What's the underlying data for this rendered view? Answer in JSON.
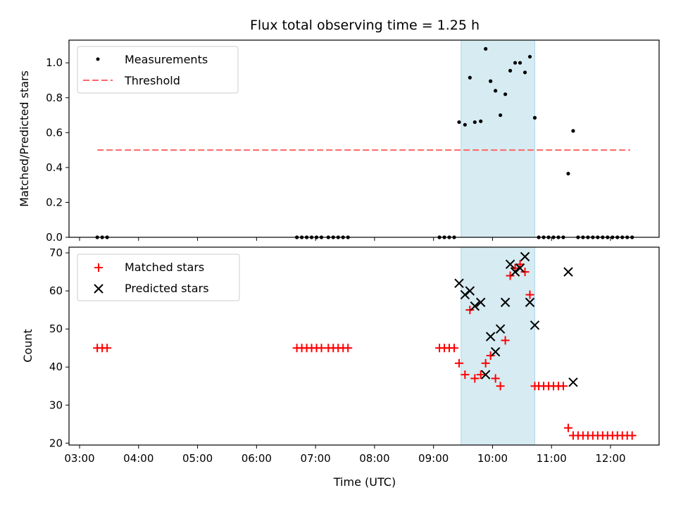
{
  "chart_data": {
    "type": "scatter",
    "title": "Flux total observing time = 1.25 h",
    "xlabel": "Time (UTC)",
    "x_ticks": [
      "03:00",
      "04:00",
      "05:00",
      "06:00",
      "07:00",
      "08:00",
      "09:00",
      "10:00",
      "11:00",
      "12:00"
    ],
    "shaded_interval": {
      "start": "09:28",
      "end": "10:43",
      "color": "#add8e6"
    },
    "panels": [
      {
        "ylabel": "Matched/Predicted stars",
        "ylim": [
          0,
          1.13
        ],
        "y_ticks": [
          "0.0",
          "0.2",
          "0.4",
          "0.6",
          "0.8",
          "1.0"
        ],
        "y_tick_values": [
          0,
          0.2,
          0.4,
          0.6,
          0.8,
          1.0
        ],
        "legend": {
          "placement": "upper left",
          "items": [
            "Measurements",
            "Threshold"
          ]
        },
        "threshold": {
          "name": "Threshold",
          "value": 0.5,
          "x_range": [
            "03:18",
            "12:20"
          ],
          "color": "#ff6666"
        },
        "series": [
          {
            "name": "Measurements",
            "marker": "dot",
            "color": "#000000",
            "points": [
              [
                "03:18",
                0
              ],
              [
                "03:23",
                0
              ],
              [
                "03:28",
                0
              ],
              [
                "06:41",
                0
              ],
              [
                "06:46",
                0
              ],
              [
                "06:51",
                0
              ],
              [
                "06:56",
                0
              ],
              [
                "07:01",
                0
              ],
              [
                "07:06",
                0
              ],
              [
                "07:13",
                0
              ],
              [
                "07:18",
                0
              ],
              [
                "07:23",
                0
              ],
              [
                "07:28",
                0
              ],
              [
                "07:33",
                0
              ],
              [
                "09:06",
                0
              ],
              [
                "09:11",
                0
              ],
              [
                "09:16",
                0
              ],
              [
                "09:21",
                0
              ],
              [
                "09:26",
                0.66
              ],
              [
                "09:32",
                0.645
              ],
              [
                "09:37",
                0.915
              ],
              [
                "09:42",
                0.66
              ],
              [
                "09:48",
                0.665
              ],
              [
                "09:53",
                1.08
              ],
              [
                "09:58",
                0.895
              ],
              [
                "10:03",
                0.84
              ],
              [
                "10:08",
                0.7
              ],
              [
                "10:13",
                0.82
              ],
              [
                "10:18",
                0.955
              ],
              [
                "10:23",
                1.0
              ],
              [
                "10:28",
                1.0
              ],
              [
                "10:33",
                0.945
              ],
              [
                "10:38",
                1.035
              ],
              [
                "10:43",
                0.685
              ],
              [
                "10:47",
                0
              ],
              [
                "10:52",
                0
              ],
              [
                "10:57",
                0
              ],
              [
                "11:02",
                0
              ],
              [
                "11:07",
                0
              ],
              [
                "11:12",
                0
              ],
              [
                "11:17",
                0.365
              ],
              [
                "11:22",
                0.61
              ],
              [
                "11:27",
                0
              ],
              [
                "11:32",
                0
              ],
              [
                "11:37",
                0
              ],
              [
                "11:42",
                0
              ],
              [
                "11:47",
                0
              ],
              [
                "11:52",
                0
              ],
              [
                "11:57",
                0
              ],
              [
                "12:02",
                0
              ],
              [
                "12:07",
                0
              ],
              [
                "12:12",
                0
              ],
              [
                "12:17",
                0
              ],
              [
                "12:22",
                0
              ]
            ]
          }
        ]
      },
      {
        "ylabel": "Count",
        "ylim": [
          19.5,
          71.5
        ],
        "y_ticks": [
          "20",
          "30",
          "40",
          "50",
          "60",
          "70"
        ],
        "y_tick_values": [
          20,
          30,
          40,
          50,
          60,
          70
        ],
        "legend": {
          "placement": "upper left",
          "items": [
            "Matched stars",
            "Predicted stars"
          ]
        },
        "series": [
          {
            "name": "Matched stars",
            "marker": "plus",
            "color": "#ff0000",
            "points": [
              [
                "03:18",
                45
              ],
              [
                "03:23",
                45
              ],
              [
                "03:28",
                45
              ],
              [
                "06:41",
                45
              ],
              [
                "06:46",
                45
              ],
              [
                "06:51",
                45
              ],
              [
                "06:56",
                45
              ],
              [
                "07:01",
                45
              ],
              [
                "07:06",
                45
              ],
              [
                "07:13",
                45
              ],
              [
                "07:18",
                45
              ],
              [
                "07:23",
                45
              ],
              [
                "07:28",
                45
              ],
              [
                "07:33",
                45
              ],
              [
                "09:06",
                45
              ],
              [
                "09:11",
                45
              ],
              [
                "09:16",
                45
              ],
              [
                "09:21",
                45
              ],
              [
                "09:26",
                41
              ],
              [
                "09:32",
                38
              ],
              [
                "09:37",
                55
              ],
              [
                "09:42",
                37
              ],
              [
                "09:48",
                38
              ],
              [
                "09:53",
                41
              ],
              [
                "09:58",
                43
              ],
              [
                "10:03",
                37
              ],
              [
                "10:08",
                35
              ],
              [
                "10:13",
                47
              ],
              [
                "10:18",
                64
              ],
              [
                "10:23",
                66
              ],
              [
                "10:28",
                67
              ],
              [
                "10:33",
                65
              ],
              [
                "10:38",
                59
              ],
              [
                "10:43",
                35
              ],
              [
                "10:47",
                35
              ],
              [
                "10:52",
                35
              ],
              [
                "10:57",
                35
              ],
              [
                "11:02",
                35
              ],
              [
                "11:07",
                35
              ],
              [
                "11:12",
                35
              ],
              [
                "11:17",
                24
              ],
              [
                "11:22",
                22
              ],
              [
                "11:27",
                22
              ],
              [
                "11:32",
                22
              ],
              [
                "11:37",
                22
              ],
              [
                "11:42",
                22
              ],
              [
                "11:47",
                22
              ],
              [
                "11:52",
                22
              ],
              [
                "11:57",
                22
              ],
              [
                "12:02",
                22
              ],
              [
                "12:07",
                22
              ],
              [
                "12:12",
                22
              ],
              [
                "12:17",
                22
              ],
              [
                "12:22",
                22
              ]
            ]
          },
          {
            "name": "Predicted stars",
            "marker": "x",
            "color": "#000000",
            "points": [
              [
                "09:26",
                62
              ],
              [
                "09:32",
                59
              ],
              [
                "09:37",
                60
              ],
              [
                "09:42",
                56
              ],
              [
                "09:48",
                57
              ],
              [
                "09:53",
                38
              ],
              [
                "09:58",
                48
              ],
              [
                "10:03",
                44
              ],
              [
                "10:08",
                50
              ],
              [
                "10:13",
                57
              ],
              [
                "10:18",
                67
              ],
              [
                "10:23",
                65
              ],
              [
                "10:28",
                66
              ],
              [
                "10:33",
                69
              ],
              [
                "10:38",
                57
              ],
              [
                "10:43",
                51
              ],
              [
                "11:17",
                65
              ],
              [
                "11:22",
                36
              ]
            ]
          }
        ]
      }
    ]
  }
}
